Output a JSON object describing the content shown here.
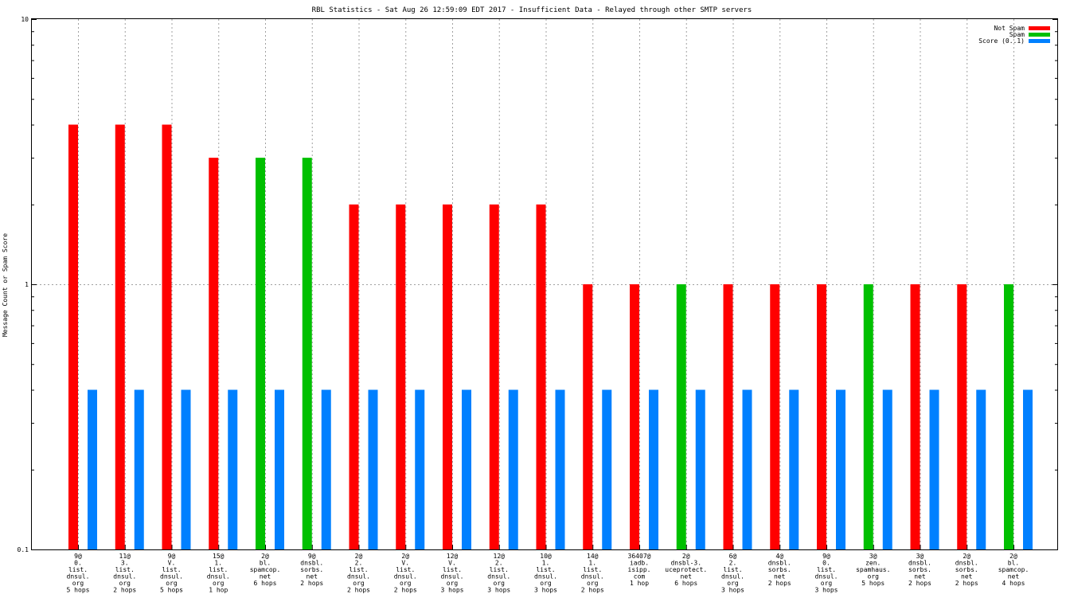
{
  "chart_data": {
    "type": "bar",
    "title": "RBL Statistics - Sat Aug 26 12:59:09 EDT 2017 - Insufficient Data - Relayed through other SMTP servers",
    "ylabel": "Message Count or Spam Score",
    "xlabel": "",
    "yscale": "log",
    "ylim": [
      0.1,
      10
    ],
    "yticks": [
      "10",
      "1",
      "0.1"
    ],
    "grid": true,
    "legend_position": "top-right",
    "colors": {
      "Not Spam": "#ff0000",
      "Spam": "#00c000",
      "Score (0..1)": "#0080ff"
    },
    "categories": [
      [
        "9@",
        "0.",
        "list.",
        "dnsul.",
        "org",
        "5 hops"
      ],
      [
        "11@",
        "3.",
        "list.",
        "dnsul.",
        "org",
        "2 hops"
      ],
      [
        "9@",
        "V.",
        "list.",
        "dnsul.",
        "org",
        "5 hops"
      ],
      [
        "15@",
        "1.",
        "list.",
        "dnsul.",
        "org",
        "1 hop"
      ],
      [
        "2@",
        "bl.",
        "spamcop.",
        "net",
        "6 hops"
      ],
      [
        "9@",
        "dnsbl.",
        "sorbs.",
        "net",
        "2 hops"
      ],
      [
        "2@",
        "2.",
        "list.",
        "dnsul.",
        "org",
        "2 hops"
      ],
      [
        "2@",
        "V.",
        "list.",
        "dnsul.",
        "org",
        "2 hops"
      ],
      [
        "12@",
        "V.",
        "list.",
        "dnsul.",
        "org",
        "3 hops"
      ],
      [
        "12@",
        "2.",
        "list.",
        "dnsul.",
        "org",
        "3 hops"
      ],
      [
        "10@",
        "1.",
        "list.",
        "dnsul.",
        "org",
        "3 hops"
      ],
      [
        "14@",
        "1.",
        "list.",
        "dnsul.",
        "org",
        "2 hops"
      ],
      [
        "36407@",
        "iadb.",
        "isipp.",
        "com",
        "1 hop"
      ],
      [
        "2@",
        "dnsbl-3.",
        "uceprotect.",
        "net",
        "6 hops"
      ],
      [
        "6@",
        "2.",
        "list.",
        "dnsul.",
        "org",
        "3 hops"
      ],
      [
        "4@",
        "dnsbl.",
        "sorbs.",
        "net",
        "2 hops"
      ],
      [
        "9@",
        "0.",
        "list.",
        "dnsul.",
        "org",
        "3 hops"
      ],
      [
        "3@",
        "zen.",
        "spamhaus.",
        "org",
        "5 hops"
      ],
      [
        "3@",
        "dnsbl.",
        "sorbs.",
        "net",
        "2 hops"
      ],
      [
        "2@",
        "dnsbl.",
        "sorbs.",
        "net",
        "2 hops"
      ],
      [
        "2@",
        "bl.",
        "spamcop.",
        "net",
        "4 hops"
      ]
    ],
    "series": [
      {
        "name": "Not Spam",
        "values": [
          4,
          4,
          4,
          3,
          0,
          0,
          2,
          2,
          2,
          2,
          2,
          1,
          1,
          0,
          1,
          1,
          1,
          0,
          1,
          1,
          0
        ]
      },
      {
        "name": "Spam",
        "values": [
          0,
          0,
          0,
          0,
          3,
          3,
          0,
          0,
          0,
          0,
          0,
          0,
          0,
          1,
          0,
          0,
          0,
          1,
          0,
          0,
          1
        ]
      },
      {
        "name": "Score (0..1)",
        "values": [
          0.4,
          0.4,
          0.4,
          0.4,
          0.4,
          0.4,
          0.4,
          0.4,
          0.4,
          0.4,
          0.4,
          0.4,
          0.4,
          0.4,
          0.4,
          0.4,
          0.4,
          0.4,
          0.4,
          0.4,
          0.4
        ]
      }
    ]
  }
}
